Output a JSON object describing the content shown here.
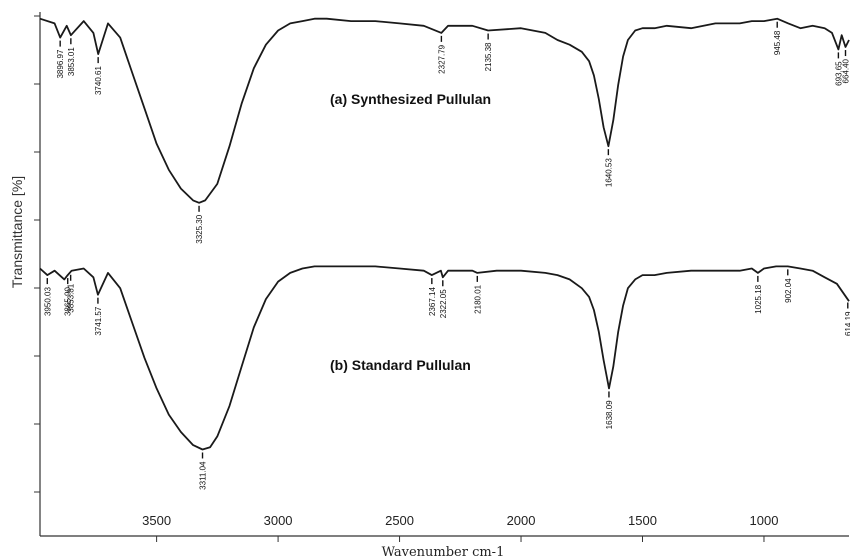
{
  "chart_data": {
    "type": "line",
    "xlabel": "Wavenumber cm-1",
    "ylabel": "Transmittance [%]",
    "xlim": [
      3980,
      650
    ],
    "x_reversed": true,
    "x_ticks": [
      3500,
      3000,
      2500,
      2000,
      1500,
      1000
    ],
    "grid": false,
    "legend": "none",
    "series": [
      {
        "name": "(a) Synthesized Pullulan",
        "x": [
          3980,
          3920,
          3896.97,
          3870,
          3853.01,
          3800,
          3760,
          3740.61,
          3700,
          3650,
          3600,
          3550,
          3500,
          3450,
          3400,
          3350,
          3325.3,
          3300,
          3250,
          3200,
          3150,
          3100,
          3050,
          3000,
          2950,
          2900,
          2850,
          2800,
          2700,
          2600,
          2500,
          2400,
          2327.79,
          2300,
          2200,
          2135.38,
          2000,
          1900,
          1850,
          1800,
          1750,
          1720,
          1700,
          1680,
          1660,
          1640.53,
          1620,
          1600,
          1580,
          1560,
          1530,
          1500,
          1450,
          1400,
          1300,
          1200,
          1100,
          1050,
          1000,
          945.48,
          900,
          850,
          800,
          750,
          720,
          693.65,
          680,
          664.4,
          650
        ],
        "y": [
          98,
          96,
          90,
          95,
          91,
          97,
          92,
          83,
          96,
          90,
          75,
          60,
          45,
          34,
          26,
          21,
          20,
          21,
          28,
          44,
          62,
          77,
          87,
          93,
          96,
          97,
          98,
          98,
          97,
          97,
          96,
          95,
          92,
          95,
          95,
          93,
          94,
          92,
          89,
          87,
          84,
          80,
          74,
          64,
          52,
          44,
          55,
          70,
          82,
          89,
          93,
          94,
          94,
          95,
          94,
          96,
          96,
          97,
          97,
          98,
          96,
          94,
          95,
          94,
          92,
          85,
          91,
          86,
          89
        ],
        "peak_labels": [
          "3896.97",
          "3853.01",
          "3740.61",
          "3325.30",
          "2327.79",
          "2135.38",
          "1640.53",
          "945.48",
          "693.65",
          "664.40"
        ]
      },
      {
        "name": "(b) Standard Pullulan",
        "x": [
          3980,
          3950.03,
          3920,
          3880,
          3865.9,
          3850,
          3800,
          3760,
          3741.57,
          3700,
          3650,
          3600,
          3550,
          3500,
          3450,
          3400,
          3350,
          3311.04,
          3280,
          3250,
          3200,
          3150,
          3100,
          3050,
          3000,
          2950,
          2900,
          2850,
          2800,
          2700,
          2600,
          2500,
          2400,
          2367.14,
          2330,
          2322.05,
          2300,
          2200,
          2180.01,
          2100,
          2000,
          1900,
          1850,
          1800,
          1750,
          1720,
          1700,
          1680,
          1660,
          1638.09,
          1620,
          1600,
          1580,
          1560,
          1530,
          1500,
          1450,
          1400,
          1300,
          1200,
          1100,
          1050,
          1025.18,
          1000,
          950,
          902.04,
          850,
          800,
          750,
          700,
          650
        ],
        "y": [
          97,
          94,
          96,
          92,
          94,
          96,
          97,
          93,
          85,
          95,
          88,
          72,
          56,
          42,
          30,
          22,
          16,
          14,
          15,
          20,
          34,
          52,
          70,
          83,
          91,
          95,
          97,
          98,
          98,
          98,
          98,
          97,
          96,
          94,
          96,
          93,
          96,
          96,
          95,
          96,
          96,
          95,
          94,
          92,
          88,
          84,
          78,
          68,
          55,
          42,
          52,
          68,
          80,
          88,
          92,
          94,
          94,
          95,
          96,
          96,
          96,
          97,
          95,
          97,
          98,
          98,
          97,
          96,
          93,
          90,
          82
        ],
        "peak_labels": [
          "3950.03",
          "3853.81",
          "3865.90",
          "3741.57",
          "3311.04",
          "2367.14",
          "2322.05",
          "2180.01",
          "1638.09",
          "1025.18",
          "902.04",
          "614.19"
        ]
      }
    ]
  }
}
